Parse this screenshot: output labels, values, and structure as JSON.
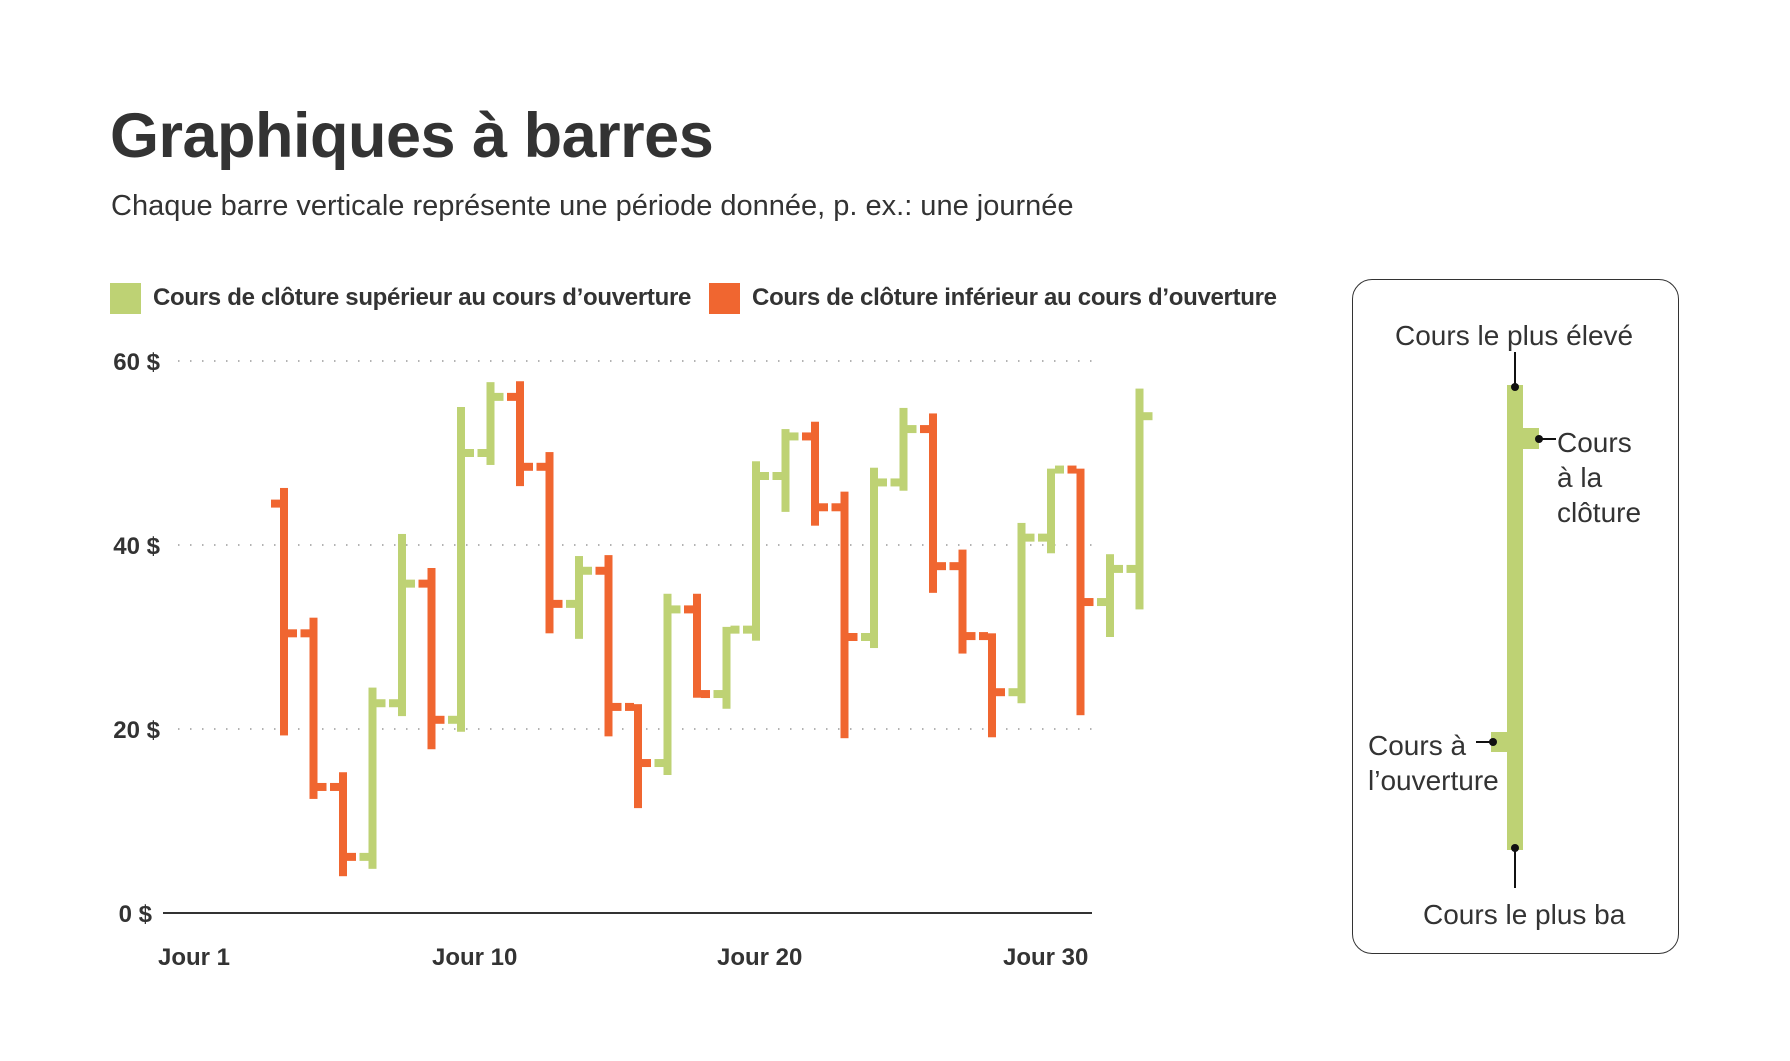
{
  "header": {
    "title": "Graphiques à barres",
    "subtitle": "Chaque barre verticale représente une période donnée, p. ex.: une journée"
  },
  "legend": {
    "items": [
      {
        "label": "Cours de clôture supérieur au cours d’ouverture",
        "color": "#bed274"
      },
      {
        "label": "Cours de clôture inférieur au cours d’ouverture",
        "color": "#f06630"
      }
    ]
  },
  "colors": {
    "up": "#bed274",
    "down": "#f06630",
    "text": "#333333",
    "grid": "#9a9a9a",
    "axis": "#333333"
  },
  "key": {
    "high_label": "Cours le plus élevé",
    "close_label_lines": [
      "Cours",
      "à la",
      "clôture"
    ],
    "open_label_lines": [
      "Cours à",
      "l’ouverture"
    ],
    "low_label": "Cours le plus ba"
  },
  "chart_data": {
    "type": "ohlc",
    "title": "Graphiques à barres",
    "subtitle": "Chaque barre verticale représente une période donnée, p. ex.: une journée",
    "xlabel": "",
    "ylabel": "",
    "ylim": [
      0,
      60
    ],
    "yticks": [
      0,
      20,
      40,
      60
    ],
    "ytick_labels": [
      "0 $",
      "20 $",
      "40 $",
      "60 $"
    ],
    "xtick_labels": [
      "Jour 1",
      "Jour 10",
      "Jour 20",
      "Jour 30"
    ],
    "grid": "horizontal dotted",
    "legend": [
      "Cours de clôture supérieur au cours d’ouverture",
      "Cours de clôture inférieur au cours d’ouverture"
    ],
    "legend_position": "top",
    "bars": [
      {
        "open": 44.5,
        "high": 46.2,
        "low": 19.3,
        "close": 30.4
      },
      {
        "open": 30.4,
        "high": 32.1,
        "low": 12.4,
        "close": 13.7
      },
      {
        "open": 13.7,
        "high": 15.3,
        "low": 4.0,
        "close": 6.1
      },
      {
        "open": 6.1,
        "high": 24.5,
        "low": 4.8,
        "close": 22.8
      },
      {
        "open": 22.8,
        "high": 41.2,
        "low": 21.4,
        "close": 35.8
      },
      {
        "open": 35.8,
        "high": 37.5,
        "low": 17.8,
        "close": 21.0
      },
      {
        "open": 21.0,
        "high": 55.0,
        "low": 19.7,
        "close": 50.0
      },
      {
        "open": 50.0,
        "high": 57.7,
        "low": 48.7,
        "close": 56.1
      },
      {
        "open": 56.1,
        "high": 57.8,
        "low": 46.4,
        "close": 48.5
      },
      {
        "open": 48.5,
        "high": 50.1,
        "low": 30.4,
        "close": 33.6
      },
      {
        "open": 33.6,
        "high": 38.8,
        "low": 29.8,
        "close": 37.2
      },
      {
        "open": 37.2,
        "high": 38.9,
        "low": 19.2,
        "close": 22.4
      },
      {
        "open": 22.4,
        "high": 22.7,
        "low": 11.4,
        "close": 16.3
      },
      {
        "open": 16.3,
        "high": 34.7,
        "low": 15.0,
        "close": 33.0
      },
      {
        "open": 33.0,
        "high": 34.7,
        "low": 23.4,
        "close": 23.8
      },
      {
        "open": 23.8,
        "high": 31.1,
        "low": 22.2,
        "close": 30.8
      },
      {
        "open": 30.8,
        "high": 49.1,
        "low": 29.6,
        "close": 47.5
      },
      {
        "open": 47.5,
        "high": 52.6,
        "low": 43.6,
        "close": 51.8
      },
      {
        "open": 51.8,
        "high": 53.4,
        "low": 42.1,
        "close": 44.1
      },
      {
        "open": 44.1,
        "high": 45.8,
        "low": 19.0,
        "close": 30.0
      },
      {
        "open": 30.0,
        "high": 48.4,
        "low": 28.8,
        "close": 46.8
      },
      {
        "open": 46.8,
        "high": 54.9,
        "low": 45.9,
        "close": 52.6
      },
      {
        "open": 52.6,
        "high": 54.3,
        "low": 34.8,
        "close": 37.7
      },
      {
        "open": 37.7,
        "high": 39.5,
        "low": 28.2,
        "close": 30.1
      },
      {
        "open": 30.1,
        "high": 30.4,
        "low": 19.1,
        "close": 24.0
      },
      {
        "open": 24.0,
        "high": 42.4,
        "low": 22.8,
        "close": 40.8
      },
      {
        "open": 40.8,
        "high": 48.3,
        "low": 39.1,
        "close": 48.2
      },
      {
        "open": 48.2,
        "high": 48.3,
        "low": 21.5,
        "close": 33.8
      },
      {
        "open": 33.8,
        "high": 39.0,
        "low": 30.0,
        "close": 37.4
      },
      {
        "open": 37.4,
        "high": 57.0,
        "low": 33.0,
        "close": 54.0
      }
    ]
  }
}
